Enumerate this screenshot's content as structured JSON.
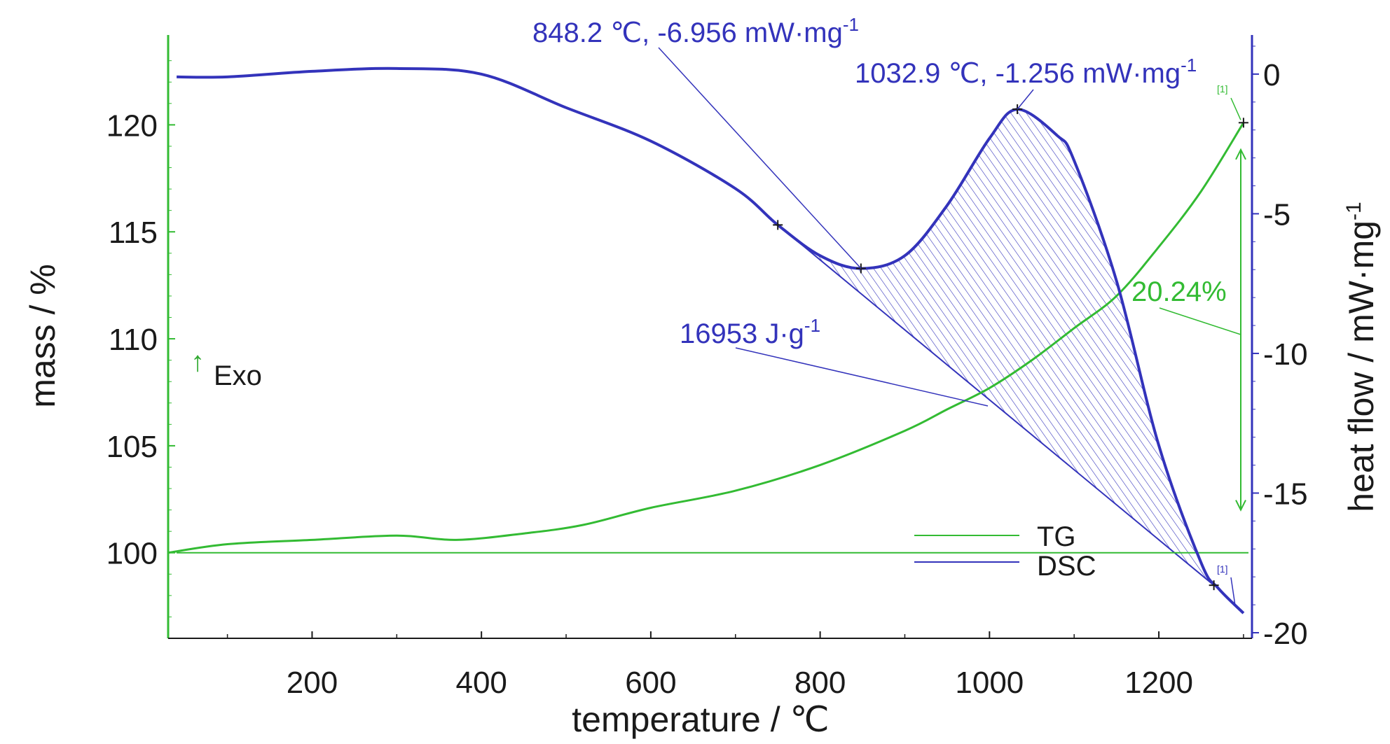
{
  "chart_data": {
    "type": "line",
    "x_label": "temperature / ℃",
    "y_left_label": "mass / %",
    "y_right_label": "heat flow / mW·mg",
    "y_right_label_sup": "-1",
    "x_ticks": [
      200,
      400,
      600,
      800,
      1000,
      1200
    ],
    "y_left_ticks": [
      100,
      105,
      110,
      115,
      120
    ],
    "y_right_ticks": [
      0,
      -5,
      -10,
      -15,
      -20
    ],
    "xlim": [
      30,
      1310
    ],
    "ylim_left": [
      96,
      124.2
    ],
    "ylim_right": [
      -20.2,
      1.4
    ],
    "left_axis_color": "#33bb33",
    "right_axis_color": "#3333bb",
    "series": [
      {
        "name": "TG",
        "axis": "left",
        "color": "#33bb33",
        "points": [
          [
            30,
            100.0
          ],
          [
            100,
            100.4
          ],
          [
            200,
            100.6
          ],
          [
            300,
            100.8
          ],
          [
            370,
            100.6
          ],
          [
            450,
            100.9
          ],
          [
            520,
            101.3
          ],
          [
            600,
            102.1
          ],
          [
            700,
            102.9
          ],
          [
            800,
            104.1
          ],
          [
            900,
            105.7
          ],
          [
            950,
            106.7
          ],
          [
            1000,
            107.7
          ],
          [
            1050,
            109.0
          ],
          [
            1100,
            110.5
          ],
          [
            1150,
            112.0
          ],
          [
            1200,
            114.3
          ],
          [
            1250,
            116.9
          ],
          [
            1300,
            120.1
          ]
        ]
      },
      {
        "name": "DSC",
        "axis": "right",
        "color": "#3333bb",
        "points": [
          [
            40,
            -0.1
          ],
          [
            100,
            -0.1
          ],
          [
            200,
            0.1
          ],
          [
            300,
            0.2
          ],
          [
            400,
            0.0
          ],
          [
            500,
            -1.2
          ],
          [
            600,
            -2.4
          ],
          [
            700,
            -4.1
          ],
          [
            750,
            -5.4
          ],
          [
            800,
            -6.5
          ],
          [
            848,
            -6.96
          ],
          [
            900,
            -6.5
          ],
          [
            950,
            -4.7
          ],
          [
            1000,
            -2.3
          ],
          [
            1032.9,
            -1.26
          ],
          [
            1080,
            -2.2
          ],
          [
            1100,
            -3.1
          ],
          [
            1150,
            -7.4
          ],
          [
            1200,
            -13.3
          ],
          [
            1250,
            -17.5
          ],
          [
            1270,
            -18.4
          ],
          [
            1300,
            -19.3
          ]
        ]
      }
    ],
    "peak_integration": {
      "value_label": "16953 J·g",
      "value_sup": "-1",
      "baseline": [
        [
          750,
          -5.4
        ],
        [
          1265,
          -18.3
        ]
      ]
    },
    "annotations": [
      {
        "text": "848.2 ℃, -6.956 mW·mg",
        "sup": "-1",
        "x": 848.2,
        "y": -6.956,
        "axis": "right"
      },
      {
        "text": "1032.9 ℃, -1.256 mW·mg",
        "sup": "-1",
        "x": 1032.9,
        "y": -1.256,
        "axis": "right"
      }
    ],
    "mass_change": {
      "text": "20.24%",
      "from": 100.0,
      "to": 120.24
    },
    "exo_label": "Exo",
    "legend": {
      "placement": "bottom-right",
      "entries": [
        "TG",
        "DSC"
      ]
    },
    "end_markers": {
      "tg": "[1]",
      "dsc": "[1]"
    },
    "grid": false
  }
}
